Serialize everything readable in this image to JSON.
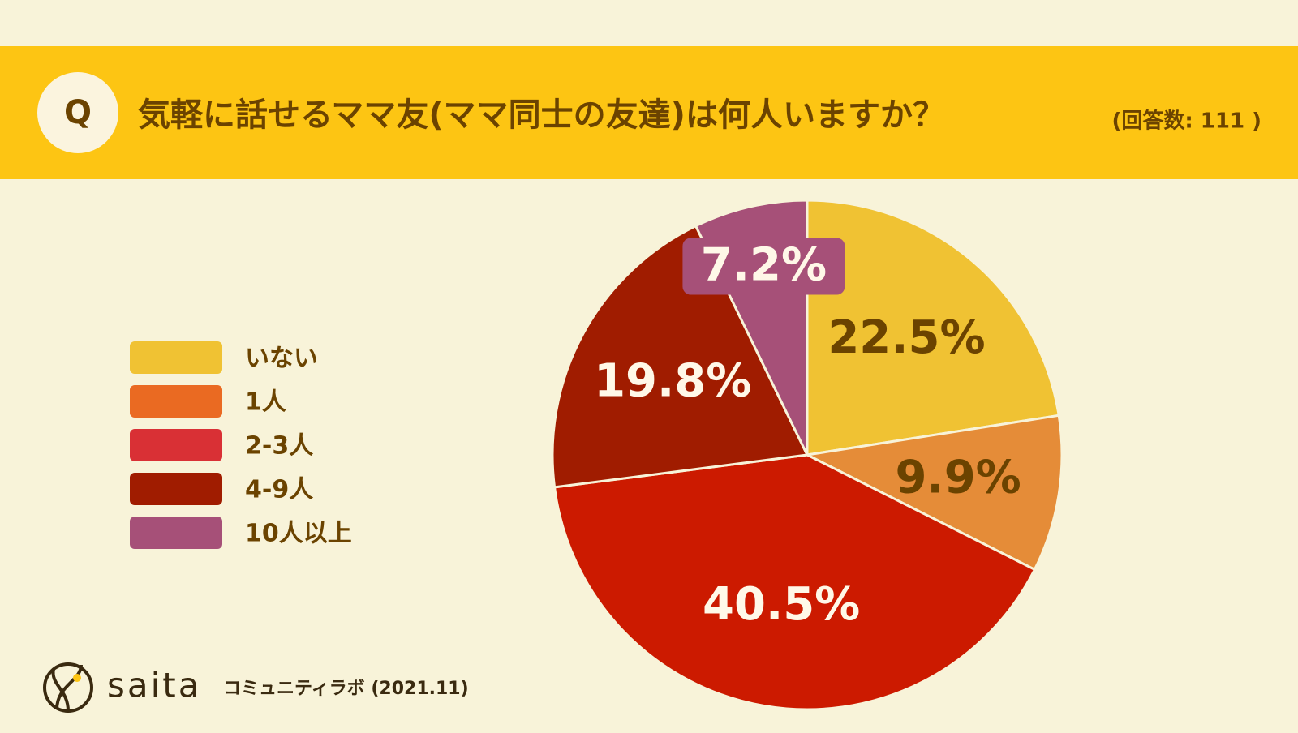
{
  "chart_data": {
    "type": "pie",
    "badge": "Q",
    "title": "気軽に話せるママ友(ママ同士の友達)は何人いますか？",
    "subtitle": "(回答数: 111 )",
    "categories": [
      "いない",
      "1人",
      "2-3人",
      "4-9人",
      "10人以上"
    ],
    "values": [
      22.5,
      9.9,
      40.5,
      19.8,
      7.2
    ],
    "value_labels": [
      "22.5%",
      "9.9%",
      "40.5%",
      "19.8%",
      "7.2%"
    ],
    "colors": [
      "#f0c233",
      "#e58c38",
      "#cc1a00",
      "#a01c00",
      "#a65078"
    ],
    "legend_colors": [
      "#f0c233",
      "#ea6a22",
      "#d93035",
      "#a01c00",
      "#a65078"
    ],
    "label_colors": [
      "#6b4300",
      "#6b4300",
      "#fff8e8",
      "#fff8e8",
      "#fff8e8"
    ],
    "brand": "saita",
    "source": "コミュニティラボ (2021.11)"
  }
}
